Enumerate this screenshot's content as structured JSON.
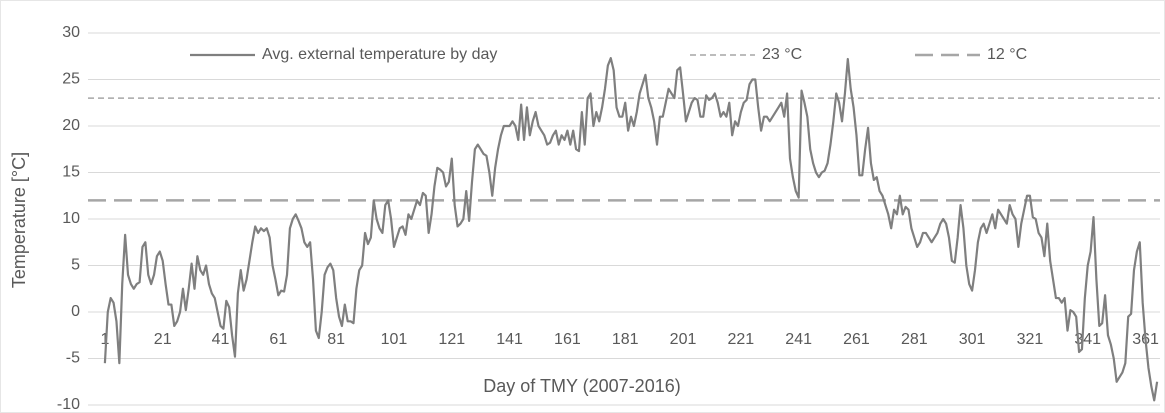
{
  "chart_data": {
    "type": "line",
    "y_label": "Temperature [°C]",
    "x_label": "Day of TMY (2007-2016)",
    "x": [
      1,
      2,
      3,
      4,
      5,
      6,
      7,
      8,
      9,
      10,
      11,
      12,
      13,
      14,
      15,
      16,
      17,
      18,
      19,
      20,
      21,
      22,
      23,
      24,
      25,
      26,
      27,
      28,
      29,
      30,
      31,
      32,
      33,
      34,
      35,
      36,
      37,
      38,
      39,
      40,
      41,
      42,
      43,
      44,
      45,
      46,
      47,
      48,
      49,
      50,
      51,
      52,
      53,
      54,
      55,
      56,
      57,
      58,
      59,
      60,
      61,
      62,
      63,
      64,
      65,
      66,
      67,
      68,
      69,
      70,
      71,
      72,
      73,
      74,
      75,
      76,
      77,
      78,
      79,
      80,
      81,
      82,
      83,
      84,
      85,
      86,
      87,
      88,
      89,
      90,
      91,
      92,
      93,
      94,
      95,
      96,
      97,
      98,
      99,
      100,
      101,
      102,
      103,
      104,
      105,
      106,
      107,
      108,
      109,
      110,
      111,
      112,
      113,
      114,
      115,
      116,
      117,
      118,
      119,
      120,
      121,
      122,
      123,
      124,
      125,
      126,
      127,
      128,
      129,
      130,
      131,
      132,
      133,
      134,
      135,
      136,
      137,
      138,
      139,
      140,
      141,
      142,
      143,
      144,
      145,
      146,
      147,
      148,
      149,
      150,
      151,
      152,
      153,
      154,
      155,
      156,
      157,
      158,
      159,
      160,
      161,
      162,
      163,
      164,
      165,
      166,
      167,
      168,
      169,
      170,
      171,
      172,
      173,
      174,
      175,
      176,
      177,
      178,
      179,
      180,
      181,
      182,
      183,
      184,
      185,
      186,
      187,
      188,
      189,
      190,
      191,
      192,
      193,
      194,
      195,
      196,
      197,
      198,
      199,
      200,
      201,
      202,
      203,
      204,
      205,
      206,
      207,
      208,
      209,
      210,
      211,
      212,
      213,
      214,
      215,
      216,
      217,
      218,
      219,
      220,
      221,
      222,
      223,
      224,
      225,
      226,
      227,
      228,
      229,
      230,
      231,
      232,
      233,
      234,
      235,
      236,
      237,
      238,
      239,
      240,
      241,
      242,
      243,
      244,
      245,
      246,
      247,
      248,
      249,
      250,
      251,
      252,
      253,
      254,
      255,
      256,
      257,
      258,
      259,
      260,
      261,
      262,
      263,
      264,
      265,
      266,
      267,
      268,
      269,
      270,
      271,
      272,
      273,
      274,
      275,
      276,
      277,
      278,
      279,
      280,
      281,
      282,
      283,
      284,
      285,
      286,
      287,
      288,
      289,
      290,
      291,
      292,
      293,
      294,
      295,
      296,
      297,
      298,
      299,
      300,
      301,
      302,
      303,
      304,
      305,
      306,
      307,
      308,
      309,
      310,
      311,
      312,
      313,
      314,
      315,
      316,
      317,
      318,
      319,
      320,
      321,
      322,
      323,
      324,
      325,
      326,
      327,
      328,
      329,
      330,
      331,
      332,
      333,
      334,
      335,
      336,
      337,
      338,
      339,
      340,
      341,
      342,
      343,
      344,
      345,
      346,
      347,
      348,
      349,
      350,
      351,
      352,
      353,
      354,
      355,
      356,
      357,
      358,
      359,
      360,
      361,
      362,
      363,
      364,
      365
    ],
    "series": [
      {
        "name": "Avg. external temperature by day",
        "color": "#7f7f7f",
        "values": [
          -5.5,
          0,
          1.5,
          1,
          -1,
          -5.5,
          3,
          8.3,
          4,
          3,
          2.5,
          3,
          3.2,
          7,
          7.5,
          4,
          3,
          4,
          6,
          6.5,
          5.5,
          3,
          0.8,
          0.8,
          -1.5,
          -1,
          0,
          2.5,
          0.2,
          2.5,
          5.2,
          2.5,
          6,
          4.5,
          4,
          5,
          3,
          2,
          1.5,
          0,
          -1.5,
          -1.8,
          1.2,
          0.5,
          -2.5,
          -4.8,
          2,
          4.5,
          2.3,
          3.5,
          5.5,
          7.5,
          9.2,
          8.5,
          9,
          8.7,
          9,
          8,
          5,
          3.5,
          1.8,
          2.3,
          2.2,
          4,
          9,
          10,
          10.5,
          9.8,
          9,
          7.5,
          7,
          7.5,
          3.5,
          -2,
          -2.8,
          0,
          4,
          4.8,
          5.2,
          4.5,
          1.5,
          -0.5,
          -1.5,
          0.8,
          -1,
          -1,
          -1.2,
          2.5,
          4.5,
          5,
          8.5,
          7.3,
          8,
          12,
          10,
          9,
          8.5,
          11.5,
          12,
          10,
          7,
          8,
          9,
          9.2,
          8.3,
          10.5,
          10,
          11,
          12,
          11.5,
          12.8,
          12.5,
          8.5,
          10.5,
          13.5,
          15.5,
          15.3,
          15,
          13.5,
          14,
          16.5,
          11.5,
          9.2,
          9.5,
          10,
          13,
          9.8,
          14,
          17.5,
          18,
          17.5,
          17,
          16.8,
          15,
          12.5,
          15.5,
          17.5,
          19,
          20,
          20,
          20,
          20.5,
          20,
          18.5,
          22.3,
          18.5,
          22,
          19,
          20.5,
          21.5,
          20,
          19.5,
          19,
          18,
          18.2,
          19,
          19.5,
          18,
          19,
          18.5,
          19.5,
          18,
          19.5,
          17.5,
          17.3,
          21.5,
          18,
          23,
          23.5,
          20,
          21.5,
          20.5,
          22,
          24,
          26.5,
          27.3,
          26,
          22,
          21,
          21,
          22.5,
          19.5,
          21,
          20,
          21.5,
          23.5,
          24.5,
          25.5,
          23,
          22,
          20.5,
          18,
          21,
          21,
          22.5,
          24,
          23.5,
          23,
          26,
          26.3,
          23.5,
          20.5,
          21.5,
          22.5,
          23,
          22.8,
          21,
          21,
          23.3,
          22.8,
          23,
          23.5,
          22.5,
          21,
          21.5,
          21,
          22.5,
          19,
          20.5,
          20,
          21.5,
          22.5,
          22.8,
          24.5,
          25,
          25,
          22,
          19.5,
          21,
          21,
          20.5,
          21,
          21.5,
          22,
          22.5,
          21,
          23.5,
          16.5,
          14.5,
          13,
          12.3,
          23.8,
          22.5,
          21,
          17.5,
          16,
          15,
          14.5,
          15,
          15.2,
          16,
          18,
          20.5,
          23.5,
          22.5,
          20.5,
          23.5,
          27.2,
          24,
          22,
          19,
          14.7,
          14.7,
          17.5,
          19.8,
          16,
          14.2,
          14.5,
          13,
          12.5,
          11.5,
          10.5,
          9,
          11,
          10.5,
          12.5,
          10.5,
          11.3,
          11,
          9,
          8,
          7,
          7.5,
          8.5,
          8.5,
          8,
          7.5,
          8,
          8.5,
          9.5,
          10,
          9.5,
          8,
          5.5,
          5.3,
          8,
          11.5,
          9,
          5,
          3,
          2.3,
          4.5,
          7.5,
          9,
          9.5,
          8.5,
          9.5,
          10.5,
          9,
          11,
          10.5,
          10,
          9.5,
          11.5,
          10.5,
          10,
          7,
          9.5,
          11,
          12.5,
          12.5,
          10.2,
          10,
          8.5,
          8,
          6,
          9.5,
          5.5,
          3.5,
          1.5,
          1.5,
          1,
          1.5,
          -2,
          0.2,
          0,
          -0.5,
          -4.3,
          -4,
          1.5,
          5,
          6.5,
          10.2,
          3.5,
          -1.5,
          -1.2,
          1.8,
          -2.5,
          -3.5,
          -5,
          -7.5,
          -7,
          -6.5,
          -5.5,
          -0.5,
          -0.2,
          4.5,
          6.5,
          7.5,
          1,
          -3,
          -6,
          -8,
          -9.5,
          -7.5
        ]
      }
    ],
    "reference_lines": [
      {
        "name": "23 °C",
        "value": 23,
        "color": "#a6a6a6",
        "dash": "short"
      },
      {
        "name": "12 °C",
        "value": 12,
        "color": "#a6a6a6",
        "dash": "long"
      }
    ],
    "xlim": [
      0,
      366
    ],
    "xticks": [
      1,
      21,
      41,
      61,
      81,
      101,
      121,
      141,
      161,
      181,
      201,
      221,
      241,
      261,
      281,
      301,
      321,
      341,
      361
    ],
    "ylim": [
      -10,
      30
    ],
    "yticks": [
      -10,
      -5,
      0,
      5,
      10,
      15,
      20,
      25,
      30
    ],
    "grid": true
  }
}
